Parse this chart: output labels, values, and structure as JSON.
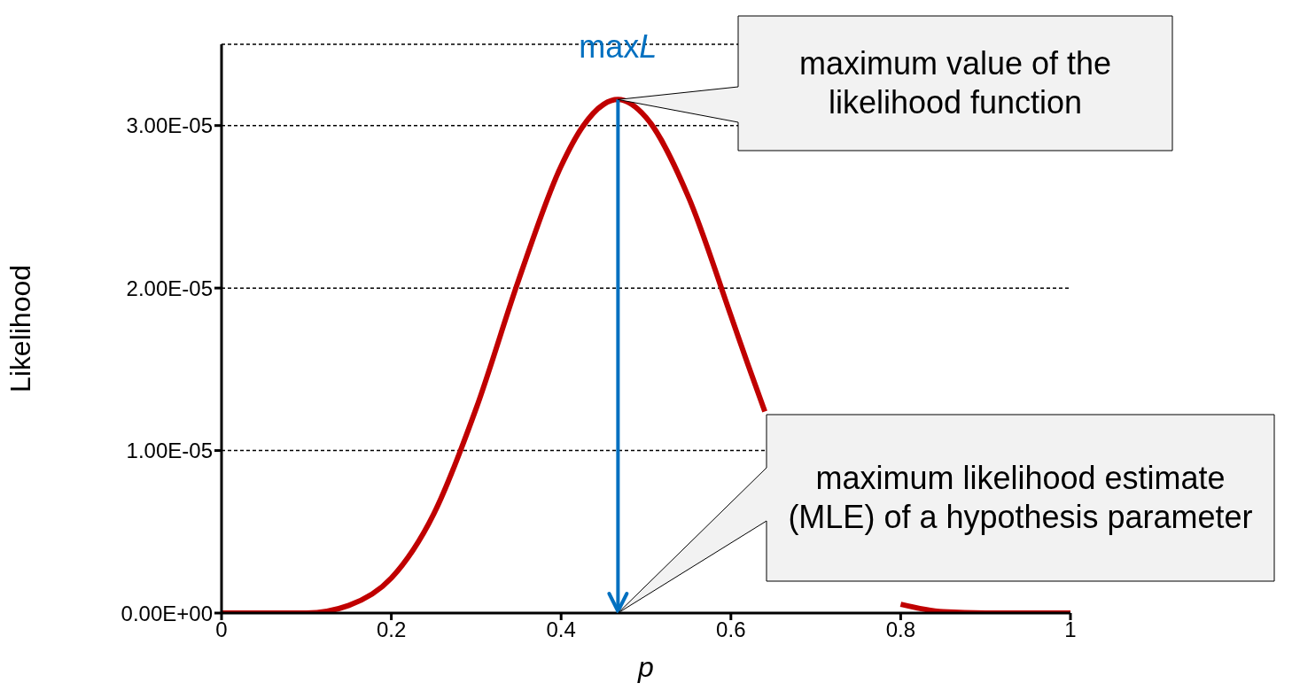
{
  "chart_data": {
    "type": "line",
    "xlabel": "p",
    "ylabel": "Likelihood",
    "x": [
      0,
      0.05,
      0.1,
      0.15,
      0.2,
      0.25,
      0.3,
      0.35,
      0.4,
      0.425,
      0.45,
      0.467,
      0.5,
      0.55,
      0.6,
      0.62,
      0.64,
      0.65,
      0.7,
      0.75,
      0.8,
      0.85,
      0.9,
      0.95,
      1
    ],
    "series": [
      {
        "color": "#c00000",
        "values": [
          0,
          0,
          0,
          4.7e-07,
          2.15e-06,
          6.1e-06,
          1.26e-05,
          2.05e-05,
          2.75e-05,
          2.99e-05,
          3.13e-05,
          3.16e-05,
          3.05e-05,
          2.56e-05,
          1.83e-05,
          1.53e-05,
          1.24e-05,
          null,
          null,
          null,
          5.4e-07,
          8e-08,
          0,
          0,
          0
        ]
      }
    ],
    "xlim": [
      0,
      1
    ],
    "xticks": [
      0,
      0.2,
      0.4,
      0.6,
      0.8,
      1
    ],
    "ylim": [
      0,
      3.5e-05
    ],
    "yticks": [
      {
        "value": 0,
        "label": "0.00E+00"
      },
      {
        "value": 1e-05,
        "label": "1.00E-05"
      },
      {
        "value": 2e-05,
        "label": "2.00E-05"
      },
      {
        "value": 3e-05,
        "label": "3.00E-05"
      }
    ],
    "grid": "y",
    "ref_lines": [
      {
        "axis": "x",
        "value": 0.467,
        "label": "maxL",
        "color": "#0070c0"
      }
    ],
    "annotations": [
      "maximum value of the likelihood function",
      "maximum likelihood estimate (MLE) of a hypothesis parameter"
    ]
  }
}
